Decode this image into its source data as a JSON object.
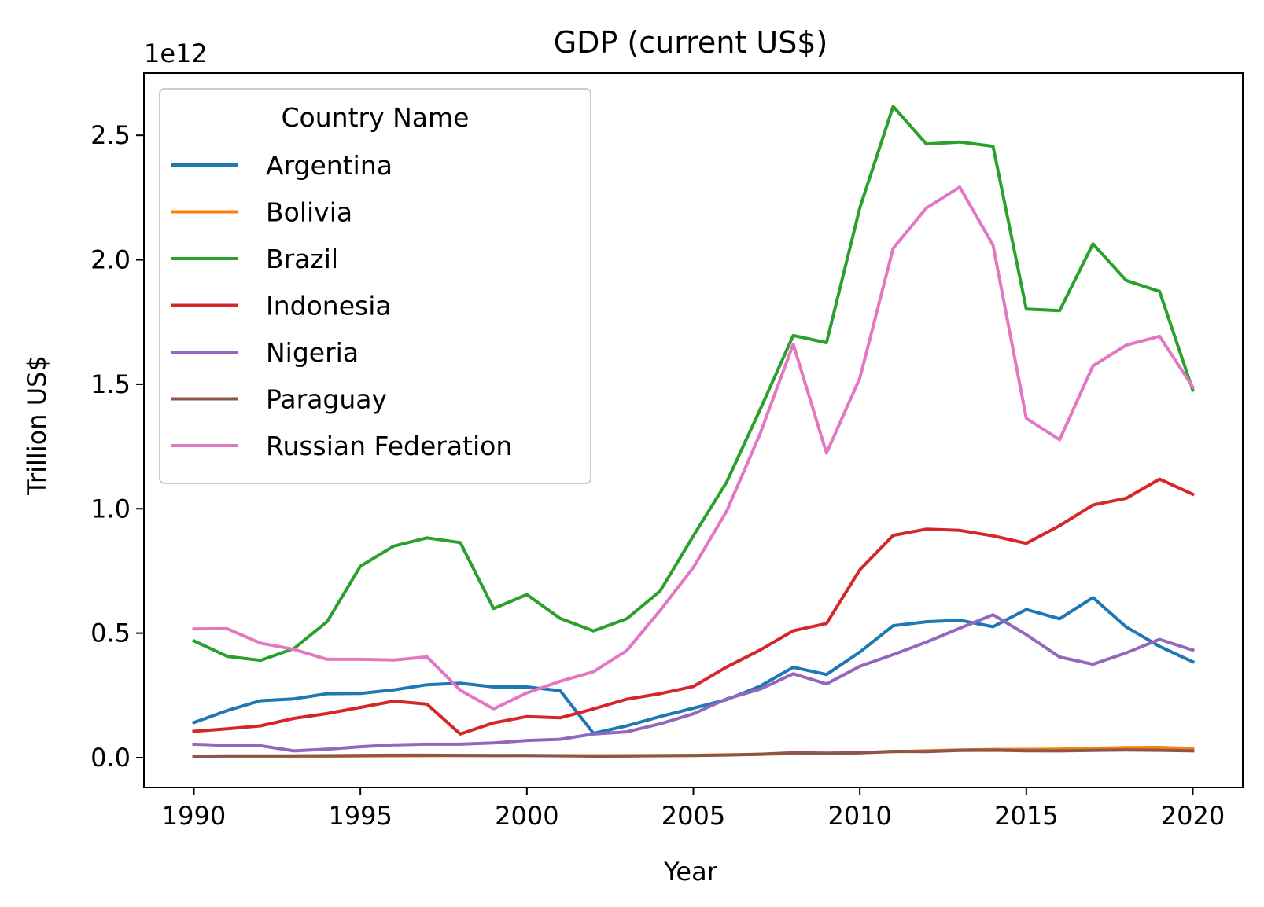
{
  "chart_data": {
    "type": "line",
    "title": "GDP (current US$)",
    "xlabel": "Year",
    "ylabel": "Trillion US$",
    "y_offset_label": "1e12",
    "xlim": [
      1988.5,
      2021.5
    ],
    "ylim": [
      -120000000000.0,
      2750000000000.0
    ],
    "x_ticks": [
      1990,
      1995,
      2000,
      2005,
      2010,
      2015,
      2020
    ],
    "y_ticks": [
      {
        "value": 0,
        "label": "0.0"
      },
      {
        "value": 500000000000,
        "label": "0.5"
      },
      {
        "value": 1000000000000,
        "label": "1.0"
      },
      {
        "value": 1500000000000,
        "label": "1.5"
      },
      {
        "value": 2000000000000,
        "label": "2.0"
      },
      {
        "value": 2500000000000,
        "label": "2.5"
      }
    ],
    "legend": {
      "title": "Country Name",
      "placement": "upper-left"
    },
    "grid": false,
    "x": [
      1990,
      1991,
      1992,
      1993,
      1994,
      1995,
      1996,
      1997,
      1998,
      1999,
      2000,
      2001,
      2002,
      2003,
      2004,
      2005,
      2006,
      2007,
      2008,
      2009,
      2010,
      2011,
      2012,
      2013,
      2014,
      2015,
      2016,
      2017,
      2018,
      2019,
      2020
    ],
    "series": [
      {
        "name": "Argentina",
        "color": "#1f77b4",
        "values": [
          141000000000,
          189000000000,
          229000000000,
          236000000000,
          257000000000,
          258000000000,
          272000000000,
          293000000000,
          299000000000,
          284000000000,
          284000000000,
          269000000000,
          98000000000,
          128000000000,
          165000000000,
          199000000000,
          233000000000,
          287000000000,
          363000000000,
          334000000000,
          424000000000,
          530000000000,
          546000000000,
          552000000000,
          526000000000,
          595000000000,
          558000000000,
          643000000000,
          525000000000,
          447000000000,
          385000000000
        ]
      },
      {
        "name": "Bolivia",
        "color": "#ff7f0e",
        "values": [
          4900000000,
          5300000000,
          5600000000,
          5700000000,
          5980000000,
          6700000000,
          7400000000,
          7900000000,
          8500000000,
          8300000000,
          8400000000,
          8100000000,
          7900000000,
          8100000000,
          8800000000,
          9500000000,
          11500000000,
          13100000000,
          16700000000,
          17300000000,
          19600000000,
          23900000000,
          27300000000,
          30700000000,
          32900000000,
          33000000000,
          34200000000,
          37500000000,
          40300000000,
          41000000000,
          36600000000
        ]
      },
      {
        "name": "Brazil",
        "color": "#2ca02c",
        "values": [
          469000000000,
          407000000000,
          391000000000,
          438000000000,
          546000000000,
          769000000000,
          850000000000,
          883000000000,
          864000000000,
          599000000000,
          655000000000,
          559000000000,
          509000000000,
          558000000000,
          669000000000,
          891000000000,
          1107000000000,
          1397000000000,
          1696000000000,
          1667000000000,
          2209000000000,
          2616000000000,
          2465000000000,
          2473000000000,
          2456000000000,
          1802000000000,
          1796000000000,
          2064000000000,
          1917000000000,
          1873000000000,
          1476000000000
        ]
      },
      {
        "name": "Indonesia",
        "color": "#d62728",
        "values": [
          106000000000,
          116000000000,
          128000000000,
          158000000000,
          177000000000,
          202000000000,
          227000000000,
          215000000000,
          95000000000,
          140000000000,
          165000000000,
          160000000000,
          196000000000,
          235000000000,
          257000000000,
          286000000000,
          364000000000,
          432000000000,
          510000000000,
          539000000000,
          755000000000,
          893000000000,
          918000000000,
          913000000000,
          891000000000,
          861000000000,
          932000000000,
          1015000000000,
          1042000000000,
          1119000000000,
          1058000000000
        ]
      },
      {
        "name": "Nigeria",
        "color": "#9467bd",
        "values": [
          54000000000,
          49000000000,
          48000000000,
          27000000000,
          34000000000,
          44000000000,
          51000000000,
          54000000000,
          54000000000,
          59000000000,
          69000000000,
          74000000000,
          95000000000,
          104000000000,
          136000000000,
          176000000000,
          236000000000,
          275000000000,
          337000000000,
          296000000000,
          367000000000,
          414000000000,
          464000000000,
          520000000000,
          574000000000,
          494000000000,
          404000000000,
          375000000000,
          421000000000,
          475000000000,
          432000000000
        ]
      },
      {
        "name": "Paraguay",
        "color": "#8c564b",
        "values": [
          5700000000,
          6900000000,
          7200000000,
          7300000000,
          7900000000,
          9100000000,
          9800000000,
          9900000000,
          9200000000,
          8600000000,
          8400000000,
          7700000000,
          6300000000,
          6600000000,
          8000000000,
          8700000000,
          10600000000,
          14000000000,
          19500000000,
          17900000000,
          20000000000,
          25100000000,
          24600000000,
          28900000000,
          30100000000,
          27300000000,
          27200000000,
          29300000000,
          30500000000,
          29700000000,
          27600000000
        ]
      },
      {
        "name": "Russian Federation",
        "color": "#e377c2",
        "values": [
          517000000000,
          518000000000,
          460000000000,
          435000000000,
          395000000000,
          395000000000,
          392000000000,
          405000000000,
          271000000000,
          196000000000,
          260000000000,
          307000000000,
          345000000000,
          430000000000,
          591000000000,
          764000000000,
          990000000000,
          1300000000000,
          1661000000000,
          1223000000000,
          1525000000000,
          2046000000000,
          2208000000000,
          2292000000000,
          2059000000000,
          1363000000000,
          1277000000000,
          1574000000000,
          1657000000000,
          1693000000000,
          1489000000000
        ]
      }
    ]
  }
}
